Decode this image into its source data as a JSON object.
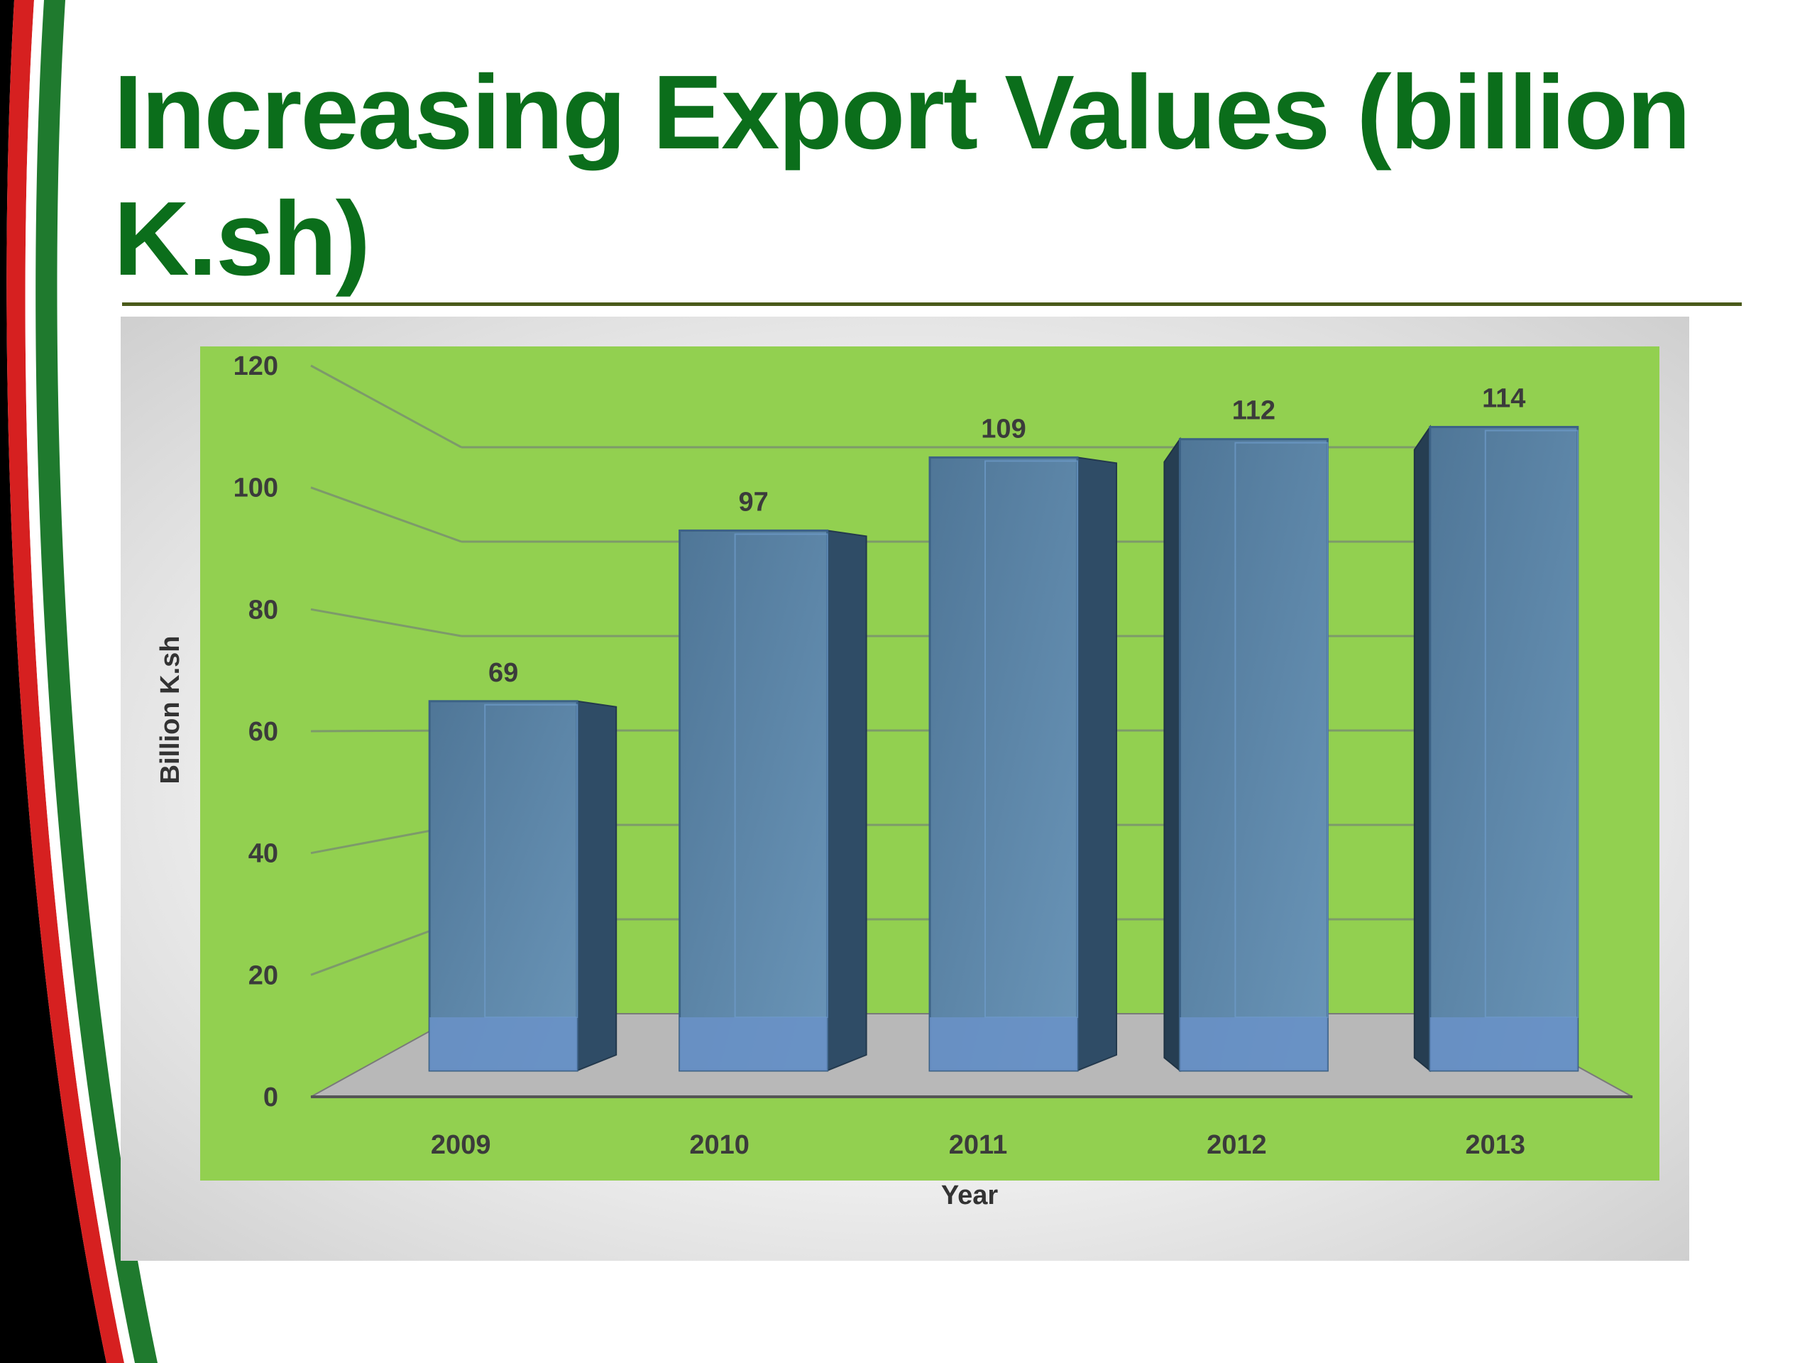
{
  "slide": {
    "title": " Increasing Export Values  (billion K.sh)"
  },
  "colors": {
    "title": "#0b6e1b",
    "plot_background": "#92d050",
    "bar_front": "#5a7fa6",
    "bar_side": "#2f4c66",
    "floor": "#b8b8b8",
    "stripe_green": "#1f7a2e",
    "stripe_red": "#d62020",
    "stripe_black": "#000000"
  },
  "chart_data": {
    "type": "bar",
    "title": "",
    "xlabel": "Year",
    "ylabel": "Billion K.sh",
    "categories": [
      "2009",
      "2010",
      "2011",
      "2012",
      "2013"
    ],
    "values": [
      69,
      97,
      109,
      112,
      114
    ],
    "data_labels": [
      "69",
      "97",
      "109",
      "112",
      "114"
    ],
    "y_ticks": [
      "0",
      "20",
      "40",
      "60",
      "80",
      "100",
      "120"
    ],
    "ylim": [
      0,
      120
    ],
    "grid": true,
    "legend": "none",
    "style": "3d-column"
  }
}
